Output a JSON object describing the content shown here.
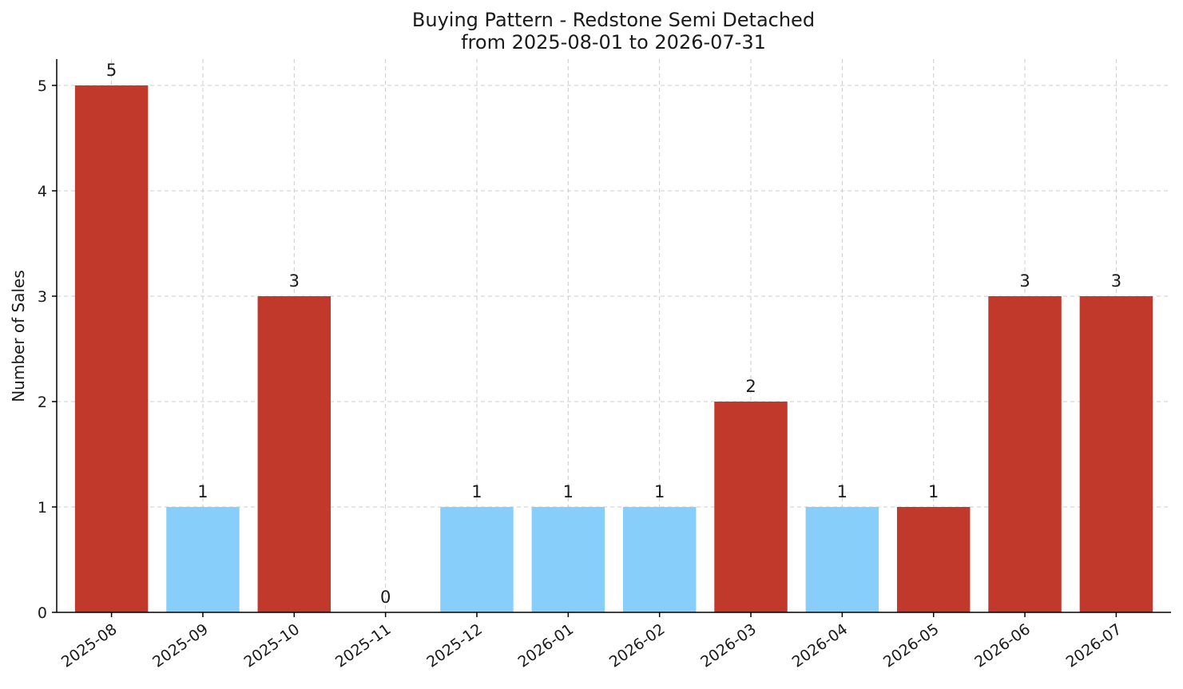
{
  "chart_data": {
    "type": "bar",
    "title": "Buying Pattern - Redstone Semi Detached",
    "subtitle": "from 2025-08-01 to 2026-07-31",
    "xlabel": "",
    "ylabel": "Number of Sales",
    "categories": [
      "2025-08",
      "2025-09",
      "2025-10",
      "2025-11",
      "2025-12",
      "2026-01",
      "2026-02",
      "2026-03",
      "2026-04",
      "2026-05",
      "2026-06",
      "2026-07"
    ],
    "values": [
      5,
      1,
      3,
      0,
      1,
      1,
      1,
      2,
      1,
      1,
      3,
      3
    ],
    "bar_colors": [
      "#c0392b",
      "#87cefa",
      "#c0392b",
      "#c0392b",
      "#87cefa",
      "#87cefa",
      "#87cefa",
      "#c0392b",
      "#87cefa",
      "#c0392b",
      "#c0392b",
      "#c0392b"
    ],
    "ylim": [
      0,
      5.25
    ],
    "yticks": [
      0,
      1,
      2,
      3,
      4,
      5
    ],
    "grid": true,
    "legend": "none"
  }
}
